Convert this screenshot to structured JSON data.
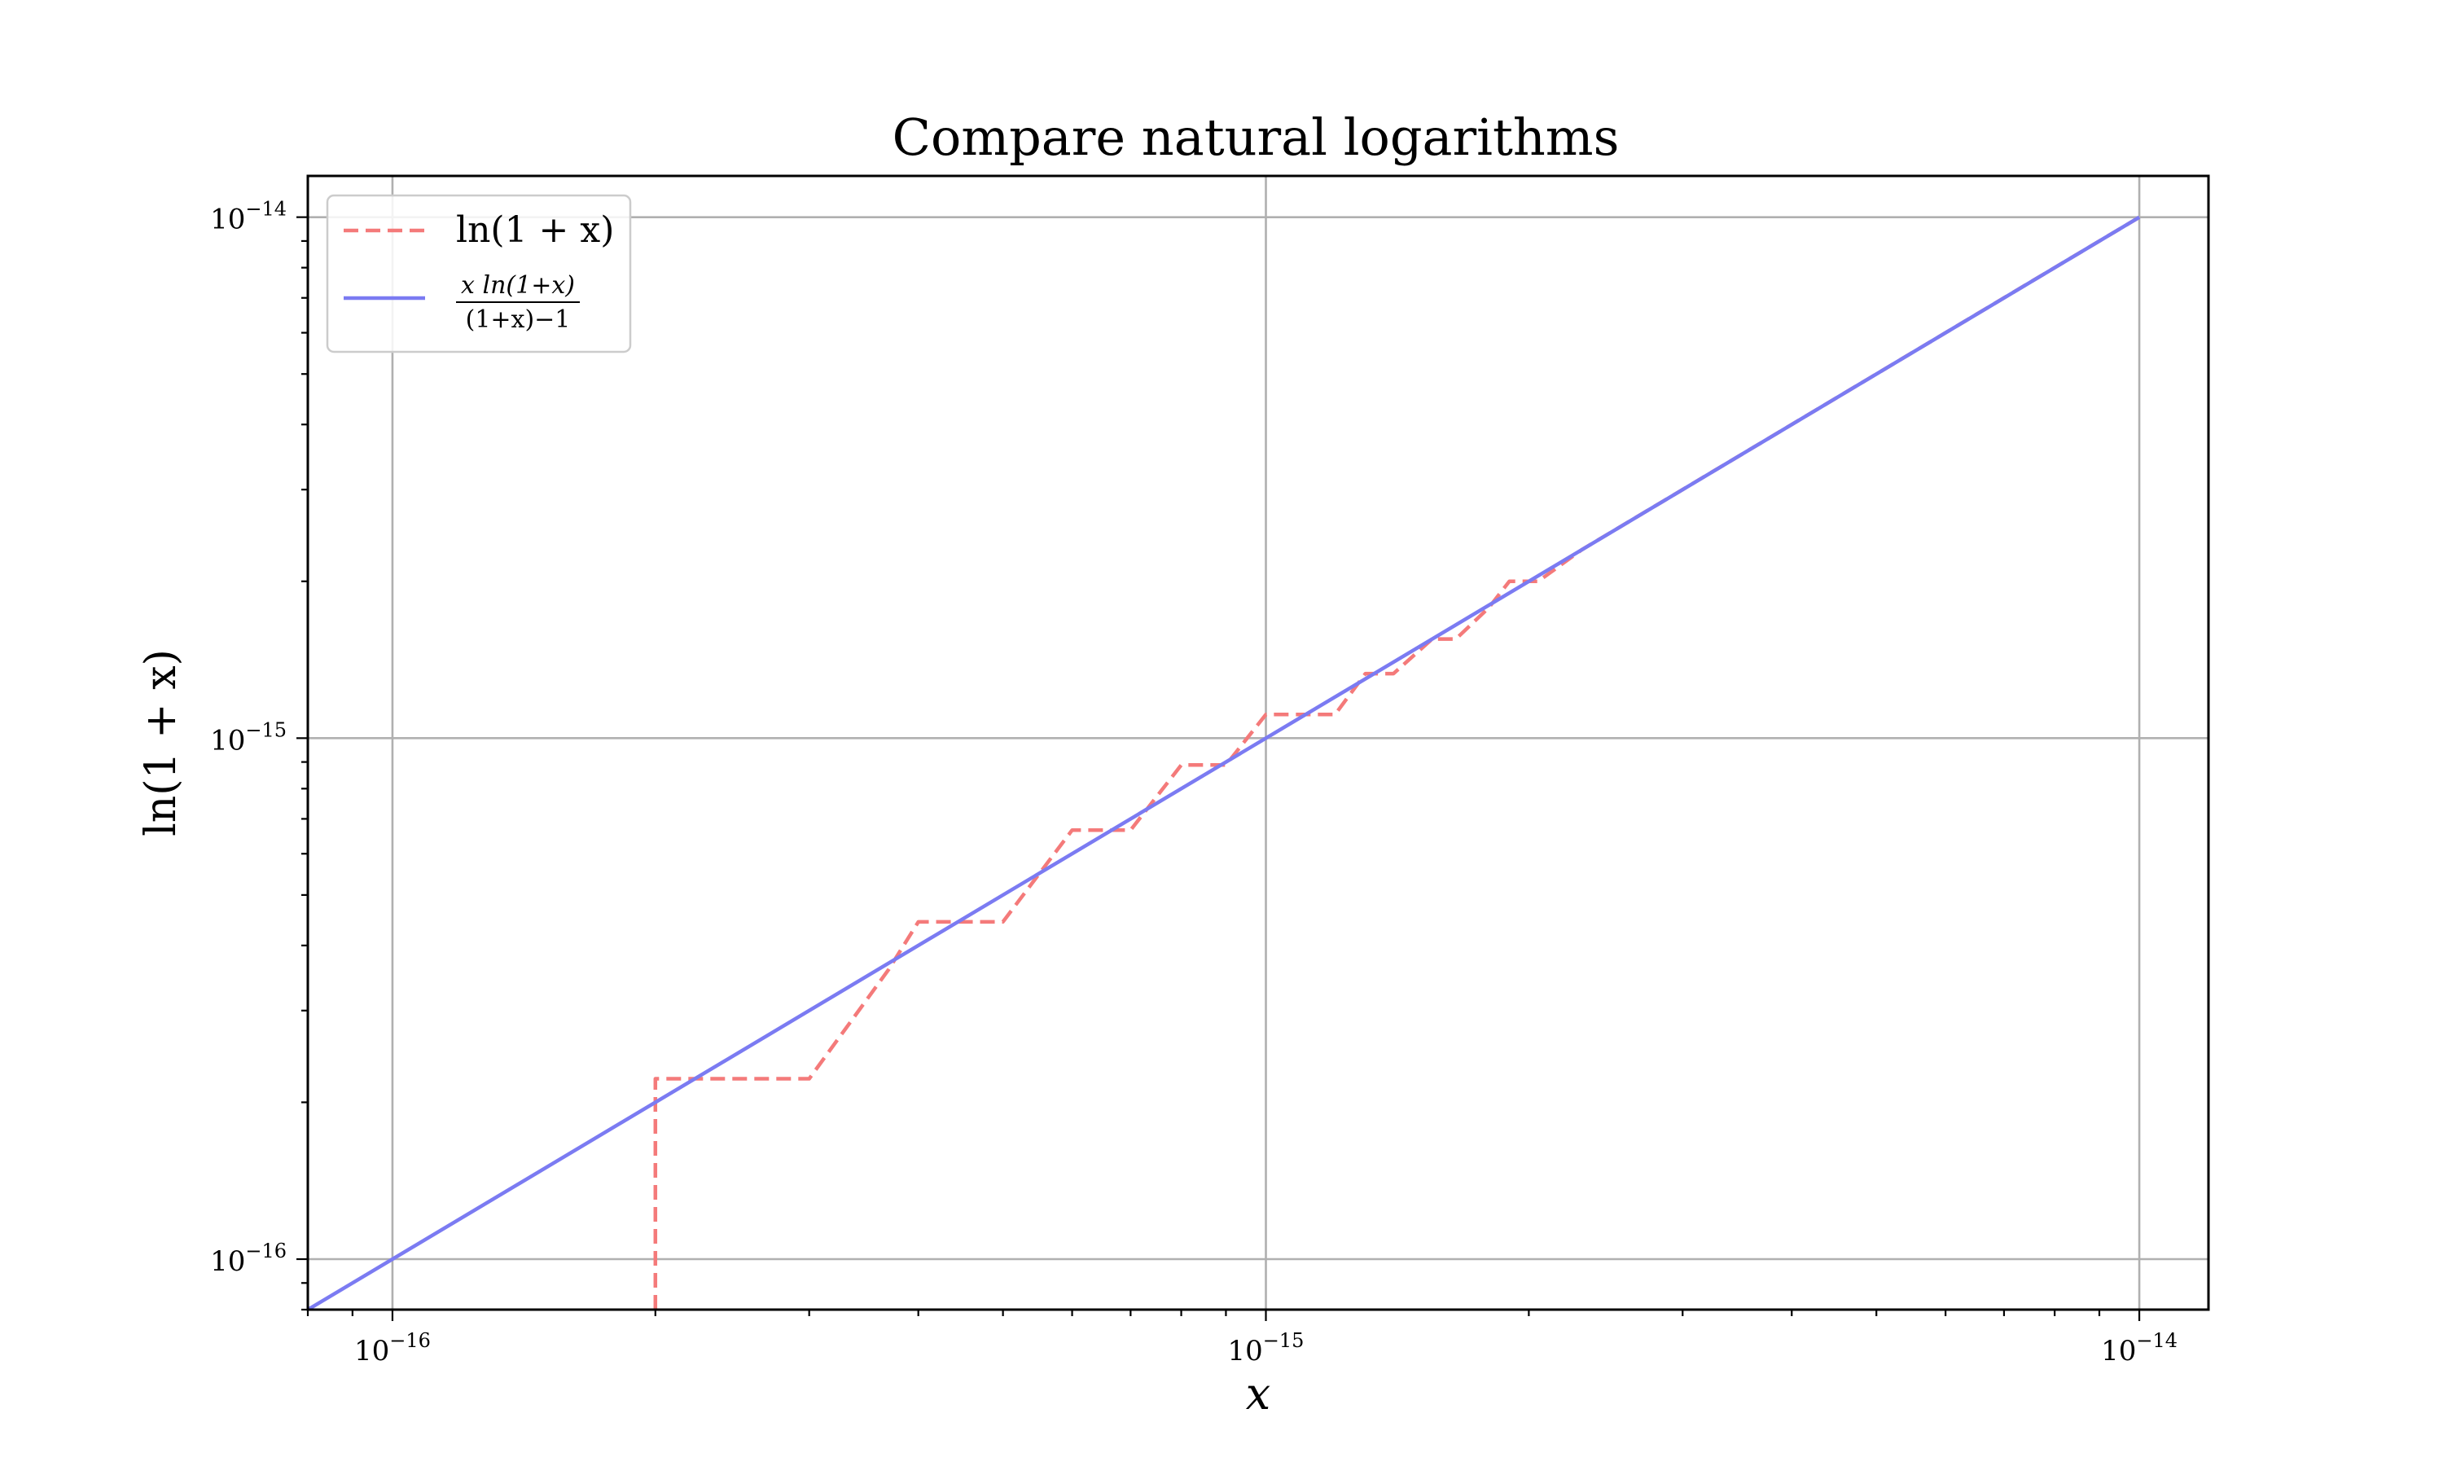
{
  "chart_data": {
    "type": "line",
    "title": "Compare natural logarithms",
    "xlabel": "x",
    "ylabel": "ln(1 + x)",
    "x_scale": "log",
    "y_scale": "log",
    "xlim": [
      8e-17,
      1.2e-14
    ],
    "ylim": [
      8e-17,
      1.2e-14
    ],
    "grid": true,
    "legend_placement": "top-left",
    "x_major_ticks": [
      1e-16,
      1e-15,
      1e-14
    ],
    "y_major_ticks": [
      1e-16,
      1e-15,
      1e-14
    ],
    "x_tick_labels": [
      {
        "base": "10",
        "exp": "−16"
      },
      {
        "base": "10",
        "exp": "−15"
      },
      {
        "base": "10",
        "exp": "−14"
      }
    ],
    "y_tick_labels": [
      {
        "base": "10",
        "exp": "−16"
      },
      {
        "base": "10",
        "exp": "−15"
      },
      {
        "base": "10",
        "exp": "−14"
      }
    ],
    "series": [
      {
        "name": "ln(1 + x)",
        "legend_label": "ln(1 + x)",
        "color": "#f47a7a",
        "style": "dashed",
        "points": [
          [
            2e-16,
            8e-17
          ],
          [
            2e-16,
            2.22e-16
          ],
          [
            3e-16,
            2.22e-16
          ],
          [
            3.7e-16,
            3.6e-16
          ],
          [
            4e-16,
            4.44e-16
          ],
          [
            5e-16,
            4.44e-16
          ],
          [
            6e-16,
            6.66e-16
          ],
          [
            7e-16,
            6.66e-16
          ],
          [
            8e-16,
            8.88e-16
          ],
          [
            9e-16,
            8.88e-16
          ],
          [
            1e-15,
            1.11e-15
          ],
          [
            1.2e-15,
            1.11e-15
          ],
          [
            1.3e-15,
            1.33e-15
          ],
          [
            1.4e-15,
            1.33e-15
          ],
          [
            1.55e-15,
            1.55e-15
          ],
          [
            1.65e-15,
            1.55e-15
          ],
          [
            1.8e-15,
            1.78e-15
          ],
          [
            1.9e-15,
            2e-15
          ],
          [
            2.05e-15,
            2e-15
          ],
          [
            2.3e-15,
            2.3e-15
          ],
          [
            2.55e-15,
            2.55e-15
          ],
          [
            2.8e-15,
            2.8e-15
          ],
          [
            3.1e-15,
            3.1e-15
          ],
          [
            3.5e-15,
            3.5e-15
          ],
          [
            4e-15,
            4e-15
          ],
          [
            5e-15,
            5e-15
          ],
          [
            6e-15,
            6e-15
          ],
          [
            7e-15,
            7e-15
          ],
          [
            8.5e-15,
            8.5e-15
          ],
          [
            1e-14,
            1e-14
          ]
        ]
      },
      {
        "name": "x ln(1+x) / ((1+x)−1)",
        "legend_label": {
          "numerator": "x ln(1+x)",
          "denominator": "(1+x)−1"
        },
        "color": "#7b7bf2",
        "style": "solid",
        "points": [
          [
            8e-17,
            8e-17
          ],
          [
            1e-14,
            1e-14
          ]
        ]
      }
    ]
  }
}
